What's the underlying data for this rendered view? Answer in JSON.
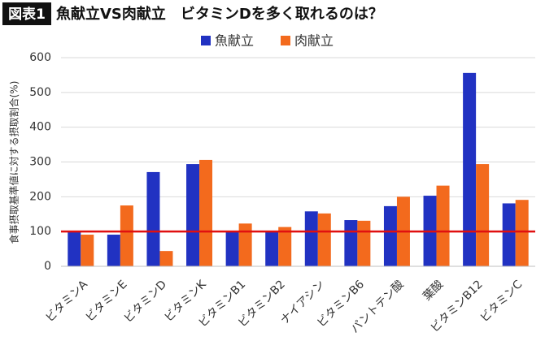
{
  "chart_data": {
    "type": "bar",
    "figure_label": "図表1",
    "title": "魚献立VS肉献立　ビタミンDを多く取れるのは？",
    "y_label": "食事摂取基準値に対する摂取割合(%)",
    "categories": [
      "ビタミンA",
      "ビタミンE",
      "ビタミンD",
      "ビタミンK",
      "ビタミンB1",
      "ビタミンB2",
      "ナイアシン",
      "ビタミンB6",
      "パントテン酸",
      "葉酸",
      "ビタミンB12",
      "ビタミンC"
    ],
    "series": [
      {
        "name": "魚献立",
        "color": "#2132c2",
        "values": [
          100,
          91,
          271,
          294,
          100,
          100,
          158,
          133,
          173,
          203,
          556,
          181
        ]
      },
      {
        "name": "肉献立",
        "color": "#f36a1d",
        "values": [
          91,
          175,
          44,
          306,
          123,
          113,
          152,
          131,
          200,
          232,
          294,
          191
        ]
      }
    ],
    "ylim": [
      0,
      600
    ],
    "yticks": [
      0,
      100,
      200,
      300,
      400,
      500,
      600
    ],
    "grid": true,
    "reference_line": {
      "value": 100,
      "color": "#e01010"
    },
    "legend": "top"
  }
}
